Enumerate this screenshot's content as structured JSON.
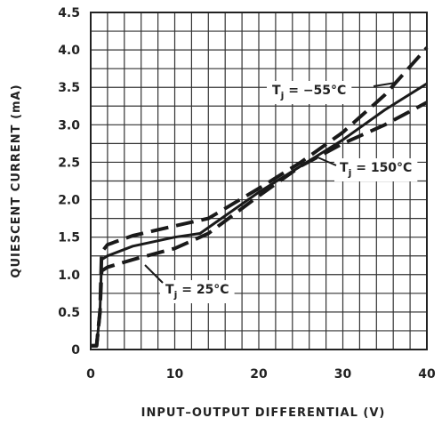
{
  "chart_data": {
    "type": "line",
    "xlabel": "INPUT–OUTPUT DIFFERENTIAL (V)",
    "ylabel": "QUIESCENT CURRENT (mA)",
    "xlim": [
      0,
      40
    ],
    "ylim": [
      0,
      4.5
    ],
    "x_ticks": [
      "0",
      "10",
      "20",
      "30",
      "40"
    ],
    "y_ticks": [
      "0",
      "0.5",
      "1.0",
      "1.5",
      "2.0",
      "2.5",
      "3.0",
      "3.5",
      "4.0",
      "4.5"
    ],
    "grid": true,
    "series": [
      {
        "name": "Tj = −55°C",
        "style": "dashed",
        "points": [
          [
            0,
            0.05
          ],
          [
            0.7,
            0.05
          ],
          [
            1.1,
            0.5
          ],
          [
            1.3,
            1.3
          ],
          [
            2,
            1.4
          ],
          [
            5,
            1.52
          ],
          [
            10,
            1.65
          ],
          [
            14,
            1.75
          ],
          [
            20,
            2.15
          ],
          [
            25,
            2.5
          ],
          [
            30,
            2.9
          ],
          [
            35,
            3.4
          ],
          [
            40,
            4.03
          ]
        ]
      },
      {
        "name": "Tj = 25°C",
        "style": "solid",
        "points": [
          [
            0,
            0.05
          ],
          [
            0.7,
            0.05
          ],
          [
            1.1,
            0.5
          ],
          [
            1.3,
            1.2
          ],
          [
            2,
            1.25
          ],
          [
            5,
            1.38
          ],
          [
            10,
            1.5
          ],
          [
            13,
            1.55
          ],
          [
            20,
            2.1
          ],
          [
            25,
            2.45
          ],
          [
            30,
            2.8
          ],
          [
            35,
            3.2
          ],
          [
            40,
            3.55
          ]
        ]
      },
      {
        "name": "Tj = 150°C",
        "style": "dashed",
        "points": [
          [
            0,
            0.05
          ],
          [
            0.7,
            0.05
          ],
          [
            1.1,
            0.5
          ],
          [
            1.3,
            1.05
          ],
          [
            2,
            1.1
          ],
          [
            5,
            1.2
          ],
          [
            10,
            1.35
          ],
          [
            14,
            1.55
          ],
          [
            20,
            2.05
          ],
          [
            25,
            2.45
          ],
          [
            30,
            2.75
          ],
          [
            35,
            3.0
          ],
          [
            40,
            3.3
          ]
        ]
      }
    ],
    "annotations": [
      {
        "main": "T",
        "sub": "j",
        "text": " = −55°C",
        "series": 0
      },
      {
        "main": "T",
        "sub": "j",
        "text": " = 150°C",
        "series": 2
      },
      {
        "main": "T",
        "sub": "j",
        "text": " = 25°C",
        "series": 1
      }
    ]
  }
}
